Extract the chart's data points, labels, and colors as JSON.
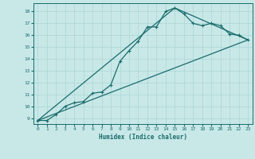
{
  "title": "",
  "xlabel": "Humidex (Indice chaleur)",
  "ylabel": "",
  "bg_color": "#c8e8e8",
  "grid_color": "#b0d8d8",
  "line_color": "#1a6b6b",
  "xlim": [
    -0.5,
    23.5
  ],
  "ylim": [
    8.5,
    18.7
  ],
  "xticks": [
    0,
    1,
    2,
    3,
    4,
    5,
    6,
    7,
    8,
    9,
    10,
    11,
    12,
    13,
    14,
    15,
    16,
    17,
    18,
    19,
    20,
    21,
    22,
    23
  ],
  "yticks": [
    9,
    10,
    11,
    12,
    13,
    14,
    15,
    16,
    17,
    18
  ],
  "line1_x": [
    0,
    1,
    2,
    3,
    4,
    5,
    6,
    7,
    8,
    9,
    10,
    11,
    12,
    13,
    14,
    15,
    16,
    17,
    18,
    19,
    20,
    21,
    22,
    23
  ],
  "line1_y": [
    8.8,
    8.8,
    9.3,
    10.0,
    10.3,
    10.4,
    11.1,
    11.2,
    11.8,
    13.8,
    14.7,
    15.5,
    16.7,
    16.7,
    18.0,
    18.3,
    17.8,
    17.0,
    16.8,
    17.0,
    16.8,
    16.1,
    16.0,
    15.6
  ],
  "line2_x": [
    0,
    23
  ],
  "line2_y": [
    8.8,
    15.6
  ],
  "line3_x": [
    0,
    15,
    23
  ],
  "line3_y": [
    8.8,
    18.3,
    15.6
  ]
}
